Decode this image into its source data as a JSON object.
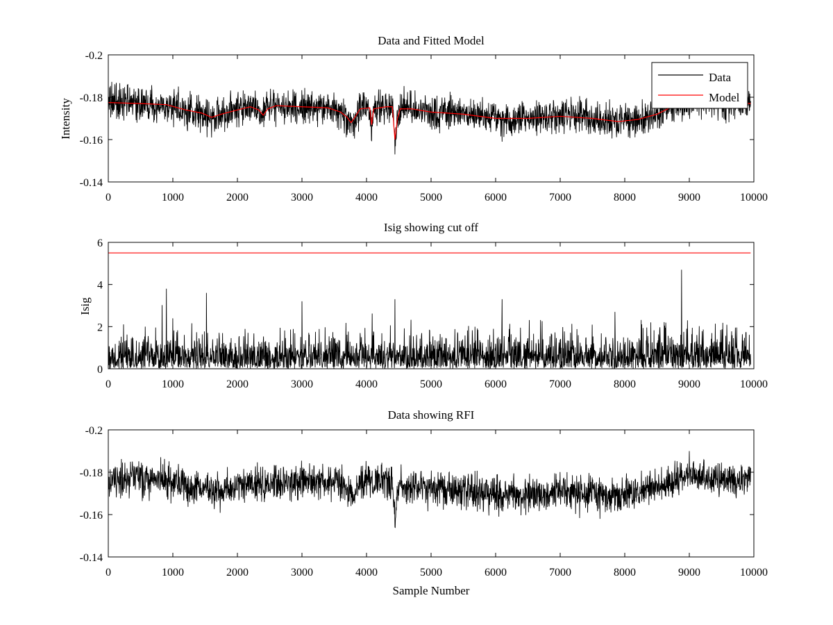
{
  "chart_data": [
    {
      "type": "line",
      "title": "Data and Fitted Model",
      "xlabel": "",
      "ylabel": "Intensity",
      "xlim": [
        0,
        10000
      ],
      "ylim": [
        -0.2,
        -0.14
      ],
      "yreversed": true,
      "xticks": [
        0,
        1000,
        2000,
        3000,
        4000,
        5000,
        6000,
        7000,
        8000,
        9000,
        10000
      ],
      "yticks": [
        -0.14,
        -0.16,
        -0.18,
        -0.2
      ],
      "ytick_labels": [
        "-0.14",
        "-0.16",
        "-0.18",
        "-0.2"
      ],
      "grid": false,
      "legend": {
        "placement": "top-right",
        "entries": [
          "Data",
          "Model"
        ]
      },
      "series": [
        {
          "name": "Data",
          "color": "#000000",
          "kind": "noisy",
          "x_range": [
            0,
            9950
          ],
          "noise_amplitude": 0.004,
          "baseline": {
            "x": [
              0,
              500,
              900,
              1200,
              1450,
              1600,
              1750,
              2000,
              2200,
              2330,
              2400,
              2470,
              2600,
              3000,
              3400,
              3600,
              3700,
              3760,
              3820,
              3900,
              4050,
              4080,
              4110,
              4300,
              4400,
              4440,
              4480,
              4520,
              4700,
              5000,
              5500,
              6000,
              6500,
              7000,
              7500,
              7900,
              8200,
              8500,
              8700,
              9000,
              9400,
              9950
            ],
            "y": [
              -0.1775,
              -0.177,
              -0.1765,
              -0.174,
              -0.1725,
              -0.1705,
              -0.172,
              -0.174,
              -0.1755,
              -0.174,
              -0.1715,
              -0.1745,
              -0.176,
              -0.1755,
              -0.175,
              -0.173,
              -0.1705,
              -0.168,
              -0.1705,
              -0.1745,
              -0.175,
              -0.167,
              -0.1745,
              -0.1755,
              -0.1755,
              -0.16,
              -0.17,
              -0.1745,
              -0.1745,
              -0.173,
              -0.172,
              -0.17,
              -0.17,
              -0.171,
              -0.17,
              -0.1685,
              -0.1695,
              -0.172,
              -0.175,
              -0.1775,
              -0.178,
              -0.177
            ]
          },
          "spikes": [
            [
              4440,
              -0.153
            ],
            [
              3760,
              -0.163
            ],
            [
              1600,
              -0.161
            ],
            [
              6100,
              -0.159
            ]
          ]
        },
        {
          "name": "Model",
          "color": "#ff0000",
          "kind": "line",
          "x": [
            0,
            500,
            900,
            1200,
            1450,
            1600,
            1750,
            2000,
            2200,
            2330,
            2400,
            2470,
            2600,
            3000,
            3400,
            3600,
            3700,
            3760,
            3820,
            3900,
            4050,
            4080,
            4110,
            4300,
            4400,
            4440,
            4480,
            4520,
            4700,
            5000,
            5500,
            6000,
            6500,
            7000,
            7500,
            7900,
            8200,
            8500,
            8700,
            9000,
            9400,
            9950
          ],
          "y": [
            -0.1775,
            -0.177,
            -0.1765,
            -0.174,
            -0.1725,
            -0.1705,
            -0.172,
            -0.174,
            -0.1755,
            -0.174,
            -0.1715,
            -0.1745,
            -0.176,
            -0.1755,
            -0.175,
            -0.173,
            -0.1705,
            -0.168,
            -0.1705,
            -0.1745,
            -0.175,
            -0.167,
            -0.1745,
            -0.1755,
            -0.1755,
            -0.16,
            -0.17,
            -0.1745,
            -0.1745,
            -0.173,
            -0.172,
            -0.17,
            -0.17,
            -0.171,
            -0.17,
            -0.1685,
            -0.1695,
            -0.172,
            -0.175,
            -0.1775,
            -0.178,
            -0.177
          ]
        }
      ]
    },
    {
      "type": "line",
      "title": "Isig showing cut off",
      "xlabel": "",
      "ylabel": "Isig",
      "xlim": [
        0,
        10000
      ],
      "ylim": [
        0,
        6
      ],
      "yreversed": false,
      "xticks": [
        0,
        1000,
        2000,
        3000,
        4000,
        5000,
        6000,
        7000,
        8000,
        9000,
        10000
      ],
      "yticks": [
        0,
        2,
        4,
        6
      ],
      "ytick_labels": [
        "0",
        "2",
        "4",
        "6"
      ],
      "grid": false,
      "series": [
        {
          "color": "#000000",
          "kind": "abs-noise",
          "x_range": [
            0,
            9950
          ],
          "scale": 0.8,
          "scale_profile": {
            "x": [
              0,
              8300,
              8500,
              9000,
              9950
            ],
            "s": [
              0.8,
              0.8,
              0.95,
              1.05,
              0.9
            ]
          },
          "spikes": [
            [
              4440,
              3.3
            ],
            [
              8880,
              4.7
            ],
            [
              900,
              3.8
            ],
            [
              1520,
              3.6
            ],
            [
              3000,
              3.2
            ],
            [
              6100,
              3.3
            ]
          ]
        },
        {
          "color": "#ff0000",
          "kind": "line",
          "x": [
            0,
            9950
          ],
          "y": [
            5.5,
            5.5
          ]
        }
      ]
    },
    {
      "type": "line",
      "title": "Data showing RFI",
      "xlabel": "Sample Number",
      "ylabel": "",
      "xlim": [
        0,
        10000
      ],
      "ylim": [
        -0.2,
        -0.14
      ],
      "yreversed": true,
      "xticks": [
        0,
        1000,
        2000,
        3000,
        4000,
        5000,
        6000,
        7000,
        8000,
        9000,
        10000
      ],
      "yticks": [
        -0.14,
        -0.16,
        -0.18,
        -0.2
      ],
      "ytick_labels": [
        "-0.14",
        "-0.16",
        "-0.18",
        "-0.2"
      ],
      "grid": false,
      "series": [
        {
          "color": "#000000",
          "kind": "noisy",
          "x_range": [
            0,
            9950
          ],
          "noise_amplitude": 0.004,
          "baseline": {
            "x": [
              0,
              500,
              900,
              1200,
              1450,
              1600,
              1750,
              2000,
              2200,
              2330,
              2400,
              2470,
              2600,
              3000,
              3400,
              3600,
              3700,
              3760,
              3820,
              3900,
              4050,
              4080,
              4110,
              4300,
              4400,
              4440,
              4480,
              4520,
              4700,
              5000,
              5500,
              6000,
              6500,
              7000,
              7500,
              7900,
              8200,
              8500,
              8700,
              9000,
              9400,
              9950
            ],
            "y": [
              -0.177,
              -0.1765,
              -0.176,
              -0.1735,
              -0.172,
              -0.1705,
              -0.172,
              -0.1735,
              -0.175,
              -0.174,
              -0.173,
              -0.1745,
              -0.1755,
              -0.1755,
              -0.1755,
              -0.174,
              -0.172,
              -0.17,
              -0.1715,
              -0.175,
              -0.1755,
              -0.174,
              -0.175,
              -0.1755,
              -0.175,
              -0.158,
              -0.169,
              -0.174,
              -0.174,
              -0.1725,
              -0.171,
              -0.169,
              -0.1695,
              -0.1705,
              -0.17,
              -0.169,
              -0.17,
              -0.172,
              -0.176,
              -0.179,
              -0.177,
              -0.176
            ]
          },
          "spikes": [
            [
              4440,
              -0.154
            ],
            [
              3760,
              -0.164
            ],
            [
              6050,
              -0.159
            ],
            [
              9000,
              -0.19
            ]
          ]
        }
      ]
    }
  ]
}
